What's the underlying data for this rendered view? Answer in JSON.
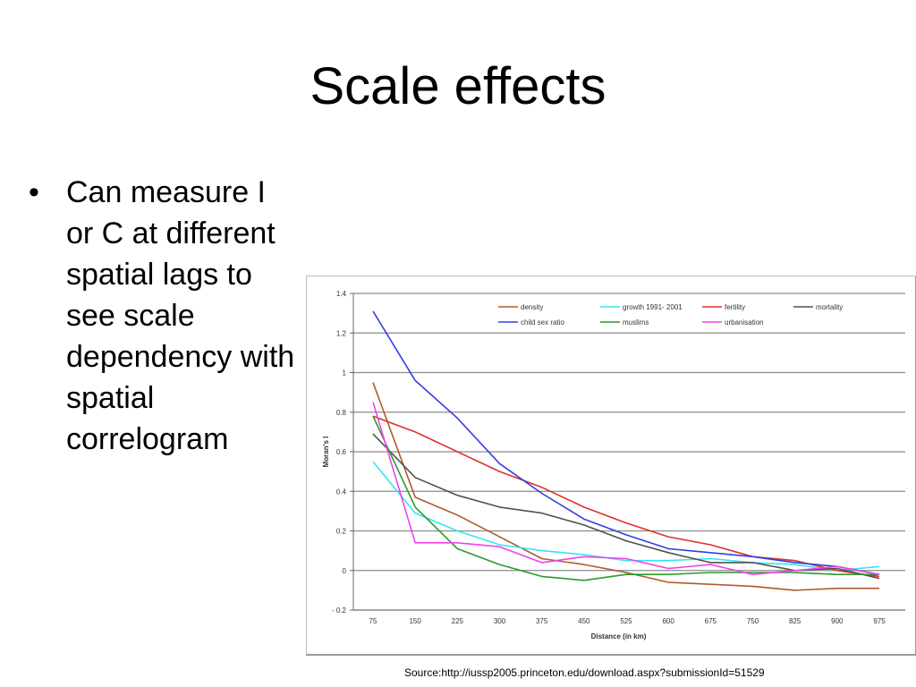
{
  "slide": {
    "title": "Scale effects",
    "bullet": "Can measure I or C at different spatial lags to see scale dependency with spatial correlogram",
    "source": "Source:http://iussp2005.princeton.edu/download.aspx?submissionId=51529"
  },
  "chart_data": {
    "type": "line",
    "xlabel": "Distance (in km)",
    "ylabel": "Moran's I",
    "ylim": [
      -0.2,
      1.4
    ],
    "yticks": [
      -0.2,
      0,
      0.2,
      0.4,
      0.6,
      0.8,
      1,
      1.2,
      1.4
    ],
    "ytick_labels": [
      "- 0.2",
      "0",
      "0.2",
      "0.4",
      "0.6",
      "0.8",
      "1",
      "1.2",
      "1.4"
    ],
    "grid": true,
    "legend": "top",
    "categories": [
      "75",
      "150",
      "225",
      "300",
      "375",
      "450",
      "525",
      "600",
      "675",
      "750",
      "825",
      "900",
      "975"
    ],
    "series": [
      {
        "name": "density",
        "color": "#b05a2a",
        "values": [
          0.95,
          0.37,
          0.28,
          0.17,
          0.06,
          0.03,
          -0.01,
          -0.06,
          -0.07,
          -0.08,
          -0.1,
          -0.09,
          -0.09
        ]
      },
      {
        "name": "growth 1991- 2001",
        "color": "#33e5f0",
        "values": [
          0.55,
          0.29,
          0.2,
          0.13,
          0.1,
          0.08,
          0.05,
          0.05,
          0.06,
          0.04,
          0.03,
          0.0,
          0.02
        ]
      },
      {
        "name": "fertility",
        "color": "#e0302a",
        "values": [
          0.78,
          0.7,
          0.6,
          0.5,
          0.42,
          0.32,
          0.24,
          0.17,
          0.13,
          0.07,
          0.05,
          0.0,
          -0.03
        ]
      },
      {
        "name": "mortality",
        "color": "#505050",
        "values": [
          0.69,
          0.47,
          0.38,
          0.32,
          0.29,
          0.23,
          0.15,
          0.09,
          0.04,
          0.04,
          0.0,
          0.01,
          -0.04
        ]
      },
      {
        "name": "child sex ratio",
        "color": "#3040e0",
        "values": [
          1.31,
          0.96,
          0.77,
          0.54,
          0.39,
          0.26,
          0.18,
          0.11,
          0.09,
          0.07,
          0.04,
          0.02,
          -0.02
        ]
      },
      {
        "name": "muslims",
        "color": "#2c9a2c",
        "values": [
          0.78,
          0.32,
          0.11,
          0.03,
          -0.03,
          -0.05,
          -0.02,
          -0.02,
          -0.01,
          -0.01,
          -0.01,
          -0.02,
          -0.02
        ]
      },
      {
        "name": "urbanisation",
        "color": "#f040f0",
        "values": [
          0.85,
          0.14,
          0.14,
          0.12,
          0.04,
          0.07,
          0.06,
          0.01,
          0.03,
          -0.02,
          0.0,
          0.02,
          -0.02
        ]
      }
    ]
  }
}
